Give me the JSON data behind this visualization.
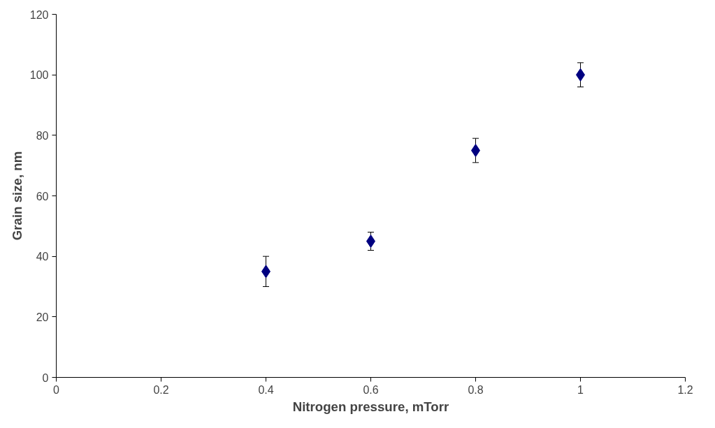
{
  "chart_data": {
    "type": "scatter",
    "xlabel": "Nitrogen pressure, mTorr",
    "ylabel": "Grain size, nm",
    "x": [
      0.4,
      0.6,
      0.8,
      1.0
    ],
    "values": [
      35,
      45,
      75,
      100
    ],
    "errors": [
      [
        30,
        40
      ],
      [
        42,
        48
      ],
      [
        71,
        79
      ],
      [
        96,
        104
      ]
    ],
    "color": "#000080",
    "marker": "diamond",
    "xlim": [
      0,
      1.2
    ],
    "xticks": [
      0,
      0.2,
      0.4,
      0.6,
      0.8,
      1,
      1.2
    ],
    "ylim": [
      0,
      120
    ],
    "yticks": [
      0,
      20,
      40,
      60,
      80,
      100,
      120
    ],
    "grid": false
  }
}
